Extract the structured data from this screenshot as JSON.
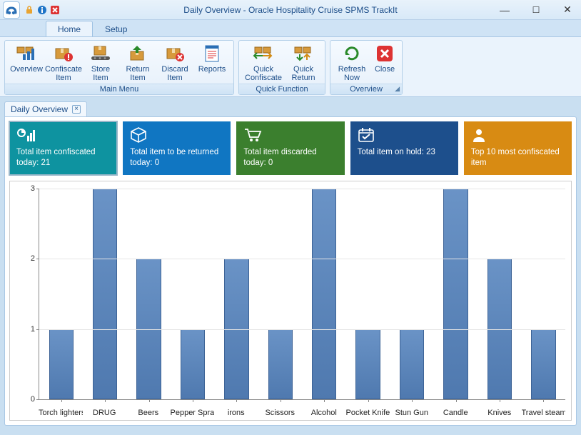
{
  "window": {
    "title": "Daily Overview - Oracle Hospitality Cruise SPMS TrackIt"
  },
  "tabs": {
    "home": "Home",
    "setup": "Setup"
  },
  "ribbon": {
    "main_menu": {
      "label": "Main Menu",
      "overview": "Overview",
      "confiscate_item": "Confiscate Item",
      "store_item": "Store Item",
      "return_item": "Return Item",
      "discard_item": "Discard Item",
      "reports": "Reports"
    },
    "quick_function": {
      "label": "Quick Function",
      "quick_confiscate": "Quick Confiscate",
      "quick_return": "Quick Return"
    },
    "overview_group": {
      "label": "Overview",
      "refresh_now": "Refresh Now",
      "close": "Close"
    }
  },
  "doc_tab": {
    "label": "Daily Overview"
  },
  "tiles": [
    {
      "text": "Total item confiscated today: 21",
      "color": "#0e93a0",
      "icon": "chart"
    },
    {
      "text": "Total item to be returned today: 0",
      "color": "#1076c2",
      "icon": "cube"
    },
    {
      "text": "Total item discarded today: 0",
      "color": "#3b7f2e",
      "icon": "cart"
    },
    {
      "text": "Total item on hold: 23",
      "color": "#1d4f8c",
      "icon": "calendar"
    },
    {
      "text": "Top 10 most confiscated item",
      "color": "#d88b13",
      "icon": "person"
    }
  ],
  "chart": {
    "type": "bar",
    "categories": [
      "Torch lighters",
      "DRUG",
      "Beers",
      "Pepper Spray",
      "irons",
      "Scissors",
      "Alcohol",
      "Pocket Knife",
      "Stun Gun",
      "Candle",
      "Knives",
      "Travel steamers"
    ],
    "values": [
      1,
      3,
      2,
      1,
      2,
      1,
      3,
      1,
      1,
      3,
      2,
      1
    ],
    "ylim": [
      0,
      3
    ],
    "ytick_step": 1,
    "bar_fill_top": "#6a93c6",
    "bar_fill_bottom": "#4f79af",
    "bar_border": "#3d6396",
    "grid_color": "#e5e5e5",
    "axis_color": "#888888",
    "background_color": "#ffffff"
  }
}
